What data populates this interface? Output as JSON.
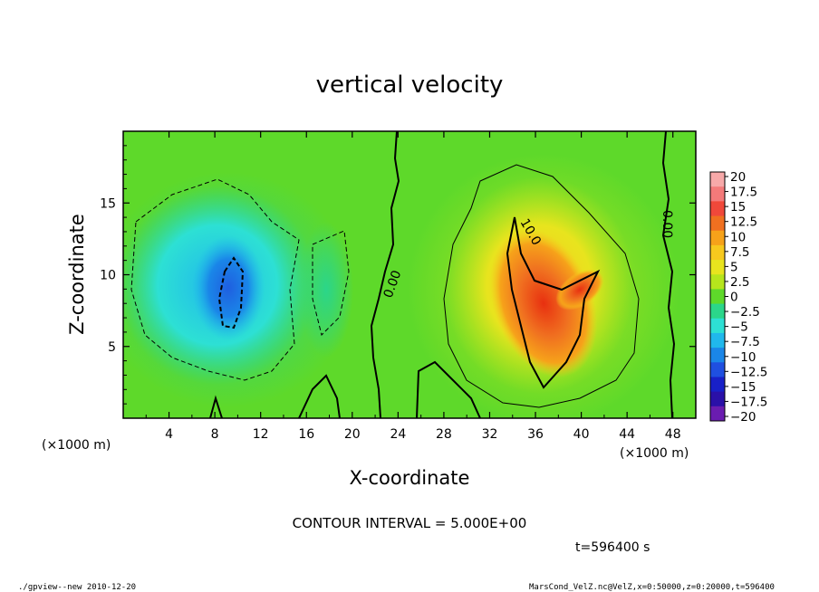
{
  "chart_data": {
    "type": "heatmap",
    "title": "vertical velocity",
    "xlabel": "X-coordinate",
    "ylabel": "Z-coordinate",
    "x_unit": "(×1000 m)",
    "z_unit": "(×1000 m)",
    "xlim": [
      0,
      50
    ],
    "ylim": [
      0,
      20
    ],
    "x_ticks": [
      4,
      8,
      12,
      16,
      20,
      24,
      28,
      32,
      36,
      40,
      44,
      48
    ],
    "y_ticks": [
      5,
      10,
      15
    ],
    "colorbar": {
      "labels": [
        "20",
        "17.5",
        "15",
        "12.5",
        "10",
        "7.5",
        "5",
        "2.5",
        "0",
        "−2.5",
        "−5",
        "−7.5",
        "−10",
        "−12.5",
        "−15",
        "−17.5",
        "−20"
      ],
      "colors": [
        "#f7a9a9",
        "#f47a7a",
        "#f0483a",
        "#f07020",
        "#f6a21a",
        "#f7c91e",
        "#e8e41e",
        "#b6e51c",
        "#5ed92a",
        "#2bd68a",
        "#2de0d4",
        "#20b8ec",
        "#1a86e8",
        "#1f4fe0",
        "#1820c8",
        "#2a10a8",
        "#6a1cb0"
      ]
    },
    "contour_labels": [
      "0.00",
      "10.0",
      "0.00"
    ],
    "contour_interval": "CONTOUR INTERVAL = 5.000E+00",
    "time_label": "t=596400 s",
    "features": [
      {
        "kind": "updraft",
        "x": 37,
        "z": 7,
        "peak": 12.5
      },
      {
        "kind": "downdraft",
        "x": 9.5,
        "z": 9.5,
        "peak": -11
      }
    ]
  },
  "footer": {
    "left": "./gpview--new  2010-12-20",
    "right": "MarsCond_VelZ.nc@VelZ,x=0:50000,z=0:20000,t=596400"
  },
  "colors": {
    "background_field": "#5ed92a",
    "frame": "#000000"
  }
}
